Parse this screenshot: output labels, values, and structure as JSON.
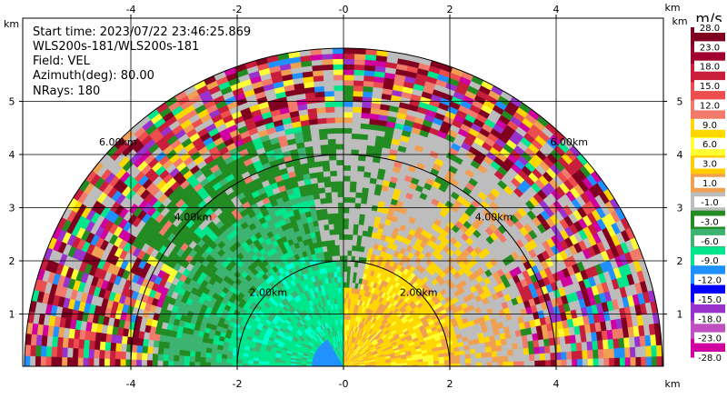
{
  "info": {
    "start_time": "Start time: 2023/07/22 23:46:25.869",
    "station": "WLS200s-181/WLS200s-181",
    "field": "Field: VEL",
    "azimuth": "Azimuth(deg): 80.00",
    "nrays": "NRays: 180"
  },
  "chart_data": {
    "type": "heatmap",
    "projection": "polar-sector (upper half)",
    "x_ticks": [
      "-4",
      "-2",
      "-0",
      "2",
      "4"
    ],
    "x_tick_values": [
      -4,
      -2,
      0,
      2,
      4
    ],
    "y_ticks": [
      "1",
      "2",
      "3",
      "4",
      "5"
    ],
    "y_tick_values": [
      1,
      2,
      3,
      4,
      5
    ],
    "xlim": [
      -6.0,
      6.0
    ],
    "ylim": [
      0,
      6.0
    ],
    "x_unit": "km",
    "y_unit": "km",
    "grid": true,
    "max_range_km": 6.0,
    "range_rings": [
      {
        "radius": 2.0,
        "label": "2.00km"
      },
      {
        "radius": 4.0,
        "label": "4.00km"
      },
      {
        "radius": 6.0,
        "label": "6.00km"
      }
    ],
    "colorbar": {
      "title": "m/s",
      "labels": [
        "28.0",
        "23.0",
        "18.0",
        "15.0",
        "12.0",
        "9.0",
        "6.0",
        "3.0",
        "1.0",
        "-1.0",
        "-3.0",
        "-6.0",
        "-9.0",
        "-12.0",
        "-15.0",
        "-18.0",
        "-23.0",
        "-28.0"
      ],
      "colors": [
        "#800020",
        "#a00030",
        "#c81e3c",
        "#ec4d4d",
        "#f27a6a",
        "#ffd700",
        "#ffff33",
        "#ffcc00",
        "#f0a050",
        "#bdbdbd",
        "#228b22",
        "#3cb371",
        "#00e68c",
        "#1e90ff",
        "#0000ff",
        "#9932cc",
        "#c050c0",
        "#d000a0"
      ]
    }
  }
}
